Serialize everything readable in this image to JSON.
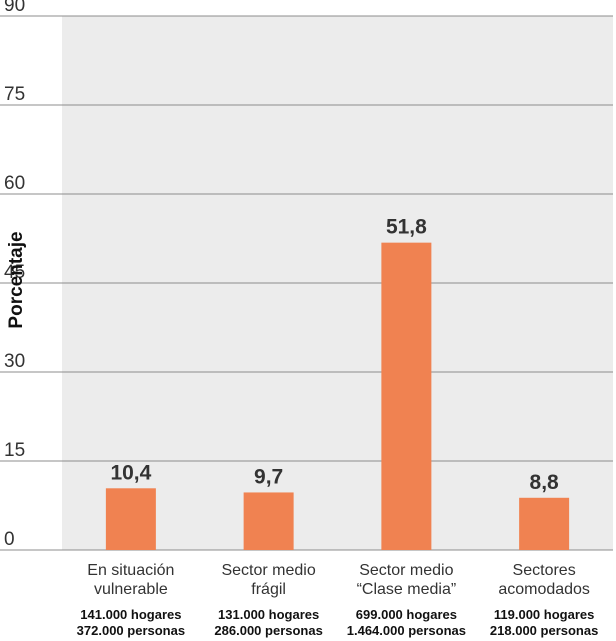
{
  "chart_data": {
    "type": "bar",
    "title": "",
    "xlabel": "",
    "ylabel": "Porcentaje",
    "ylim": [
      0,
      90
    ],
    "yticks": [
      0,
      15,
      30,
      45,
      60,
      75,
      90
    ],
    "ytick_labels": [
      "0",
      "15",
      "30",
      "45",
      "60",
      "75",
      "90"
    ],
    "grid": true,
    "categories": [
      [
        "En situación",
        "vulnerable"
      ],
      [
        "Sector medio",
        "frágil"
      ],
      [
        "Sector medio",
        "“Clase media”"
      ],
      [
        "Sectores",
        "acomodados"
      ]
    ],
    "values": [
      10.4,
      9.7,
      51.8,
      8.8
    ],
    "value_labels": [
      "10,4",
      "9,7",
      "51,8",
      "8,8"
    ],
    "footnotes": [
      [
        "141.000 hogares",
        "372.000 personas"
      ],
      [
        "131.000 hogares",
        "286.000 personas"
      ],
      [
        "699.000 hogares",
        "1.464.000 personas"
      ],
      [
        "119.000 hogares",
        "218.000 personas"
      ]
    ],
    "colors": {
      "bar": "#f08251",
      "plot_background": "#ececec",
      "grid": "#8c8c8c"
    }
  }
}
